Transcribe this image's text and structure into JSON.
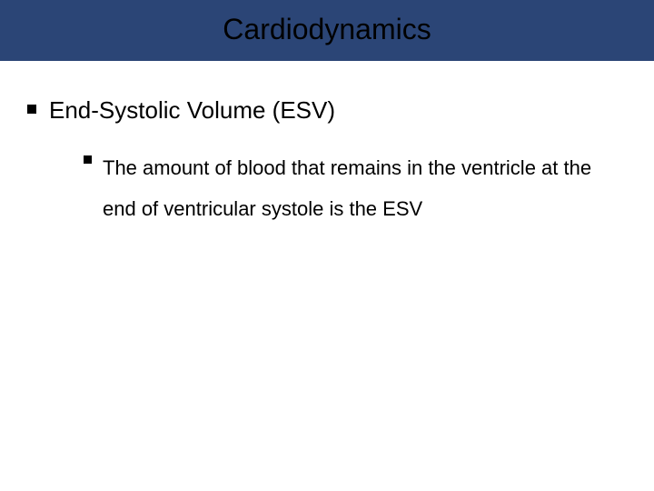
{
  "slide": {
    "title": "Cardiodynamics",
    "title_bar_color": "#2b4576",
    "title_text_color": "#000000",
    "title_fontsize": 32,
    "background_color": "#ffffff",
    "bullets": {
      "level1": {
        "text": "End-Systolic Volume (ESV)",
        "fontsize": 26,
        "bullet_color": "#000000",
        "bullet_size": 10
      },
      "level2": {
        "text": "The amount of blood that remains in the ventricle at the end of ventricular systole is the ESV",
        "fontsize": 22,
        "bullet_color": "#000000",
        "bullet_size": 9,
        "line_height": 2.05
      }
    }
  }
}
